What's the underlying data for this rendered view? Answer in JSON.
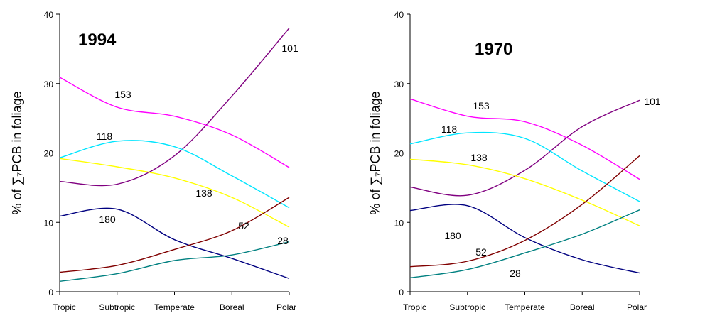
{
  "chart_data": [
    {
      "type": "line",
      "title": "1994",
      "xlabel": "",
      "ylabel": "% of ∑₇PCB in foliage",
      "ylim": [
        0,
        40
      ],
      "yticks": [
        0,
        10,
        20,
        30,
        40
      ],
      "categories": [
        "Tropic",
        "Subtropic",
        "Temperate",
        "Boreal",
        "Polar"
      ],
      "x": [
        0,
        0.25,
        0.5,
        0.75,
        1
      ],
      "grid": false,
      "legend": "none (series labelled inline)",
      "series": [
        {
          "name": "101",
          "color": "#800080",
          "values": [
            15.9,
            15.5,
            19.6,
            28.2,
            38.0
          ]
        },
        {
          "name": "153",
          "color": "#ff00ff",
          "values": [
            30.9,
            26.6,
            25.3,
            22.6,
            17.9
          ]
        },
        {
          "name": "118",
          "color": "#00e5ff",
          "values": [
            19.3,
            21.7,
            20.9,
            16.7,
            12.1
          ]
        },
        {
          "name": "138",
          "color": "#ffff00",
          "values": [
            19.2,
            18.0,
            16.4,
            13.6,
            9.3
          ]
        },
        {
          "name": "180",
          "color": "#000080",
          "values": [
            10.9,
            11.9,
            7.5,
            4.8,
            1.9
          ]
        },
        {
          "name": "52",
          "color": "#800000",
          "values": [
            2.8,
            3.8,
            6.1,
            8.8,
            13.6
          ]
        },
        {
          "name": "28",
          "color": "#008080",
          "values": [
            1.5,
            2.6,
            4.5,
            5.3,
            7.2
          ]
        }
      ]
    },
    {
      "type": "line",
      "title": "1970",
      "xlabel": "",
      "ylabel": "% of ∑₇PCB in foliage",
      "ylim": [
        0,
        40
      ],
      "yticks": [
        0,
        10,
        20,
        30,
        40
      ],
      "categories": [
        "Tropic",
        "Subtropic",
        "Temperate",
        "Boreal",
        "Polar"
      ],
      "x": [
        0,
        0.25,
        0.5,
        0.75,
        1
      ],
      "grid": false,
      "legend": "none (series labelled inline)",
      "series": [
        {
          "name": "101",
          "color": "#800080",
          "values": [
            15.1,
            13.9,
            17.5,
            23.8,
            27.6
          ]
        },
        {
          "name": "153",
          "color": "#ff00ff",
          "values": [
            27.8,
            25.3,
            24.5,
            21.1,
            16.2
          ]
        },
        {
          "name": "118",
          "color": "#00e5ff",
          "values": [
            21.3,
            22.9,
            22.1,
            17.4,
            13.0
          ]
        },
        {
          "name": "138",
          "color": "#ffff00",
          "values": [
            19.1,
            18.3,
            16.3,
            13.2,
            9.5
          ]
        },
        {
          "name": "180",
          "color": "#000080",
          "values": [
            11.7,
            12.4,
            7.8,
            4.6,
            2.7
          ]
        },
        {
          "name": "52",
          "color": "#800000",
          "values": [
            3.6,
            4.4,
            7.4,
            12.6,
            19.6
          ]
        },
        {
          "name": "28",
          "color": "#008080",
          "values": [
            2.0,
            3.2,
            5.6,
            8.3,
            11.8
          ]
        }
      ]
    }
  ]
}
